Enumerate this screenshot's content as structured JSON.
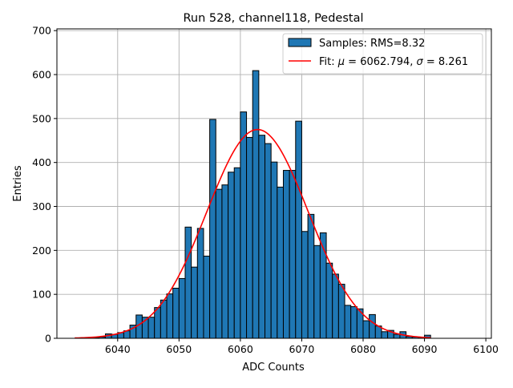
{
  "chart_data": {
    "type": "bar",
    "title": "Run 528, channel118, Pedestal",
    "xlabel": "ADC Counts",
    "ylabel": "Entries",
    "xlim": [
      6030.1,
      6100.9
    ],
    "ylim": [
      0,
      704
    ],
    "xticks": [
      6040,
      6050,
      6060,
      6070,
      6080,
      6090,
      6100
    ],
    "yticks": [
      0,
      100,
      200,
      300,
      400,
      500,
      600,
      700
    ],
    "grid": true,
    "legend_position": "top-right",
    "bin_width": 1,
    "bins": [
      6036,
      6037,
      6038,
      6039,
      6040,
      6041,
      6042,
      6043,
      6044,
      6045,
      6046,
      6047,
      6048,
      6049,
      6050,
      6051,
      6052,
      6053,
      6054,
      6055,
      6056,
      6057,
      6058,
      6059,
      6060,
      6061,
      6062,
      6063,
      6064,
      6065,
      6066,
      6067,
      6068,
      6069,
      6070,
      6071,
      6072,
      6073,
      6074,
      6075,
      6076,
      6077,
      6078,
      6079,
      6080,
      6081,
      6082,
      6083,
      6084,
      6085,
      6086,
      6087,
      6088,
      6089,
      6090
    ],
    "values": [
      1,
      3,
      10,
      9,
      13,
      17,
      30,
      53,
      48,
      48,
      70,
      87,
      101,
      114,
      136,
      253,
      162,
      250,
      187,
      498,
      339,
      349,
      378,
      388,
      515,
      457,
      609,
      462,
      443,
      401,
      344,
      382,
      382,
      494,
      243,
      282,
      211,
      240,
      171,
      146,
      123,
      75,
      72,
      67,
      40,
      54,
      28,
      15,
      18,
      9,
      15,
      4,
      3,
      2,
      7
    ],
    "series": [
      {
        "name": "Samples: RMS=8.32",
        "type": "histogram",
        "color": "#1f77b4",
        "edge_color": "#000000"
      },
      {
        "name_prefix": "Fit: ",
        "mu_symbol": "μ",
        "mu_text": " = 6062.794, ",
        "sigma_symbol": "σ",
        "sigma_text": " = 8.261",
        "type": "gaussian",
        "color": "#ff0000",
        "amplitude": 475,
        "mu": 6062.794,
        "sigma": 8.261,
        "x_range": [
          6033.0,
          6091.0
        ]
      }
    ]
  }
}
